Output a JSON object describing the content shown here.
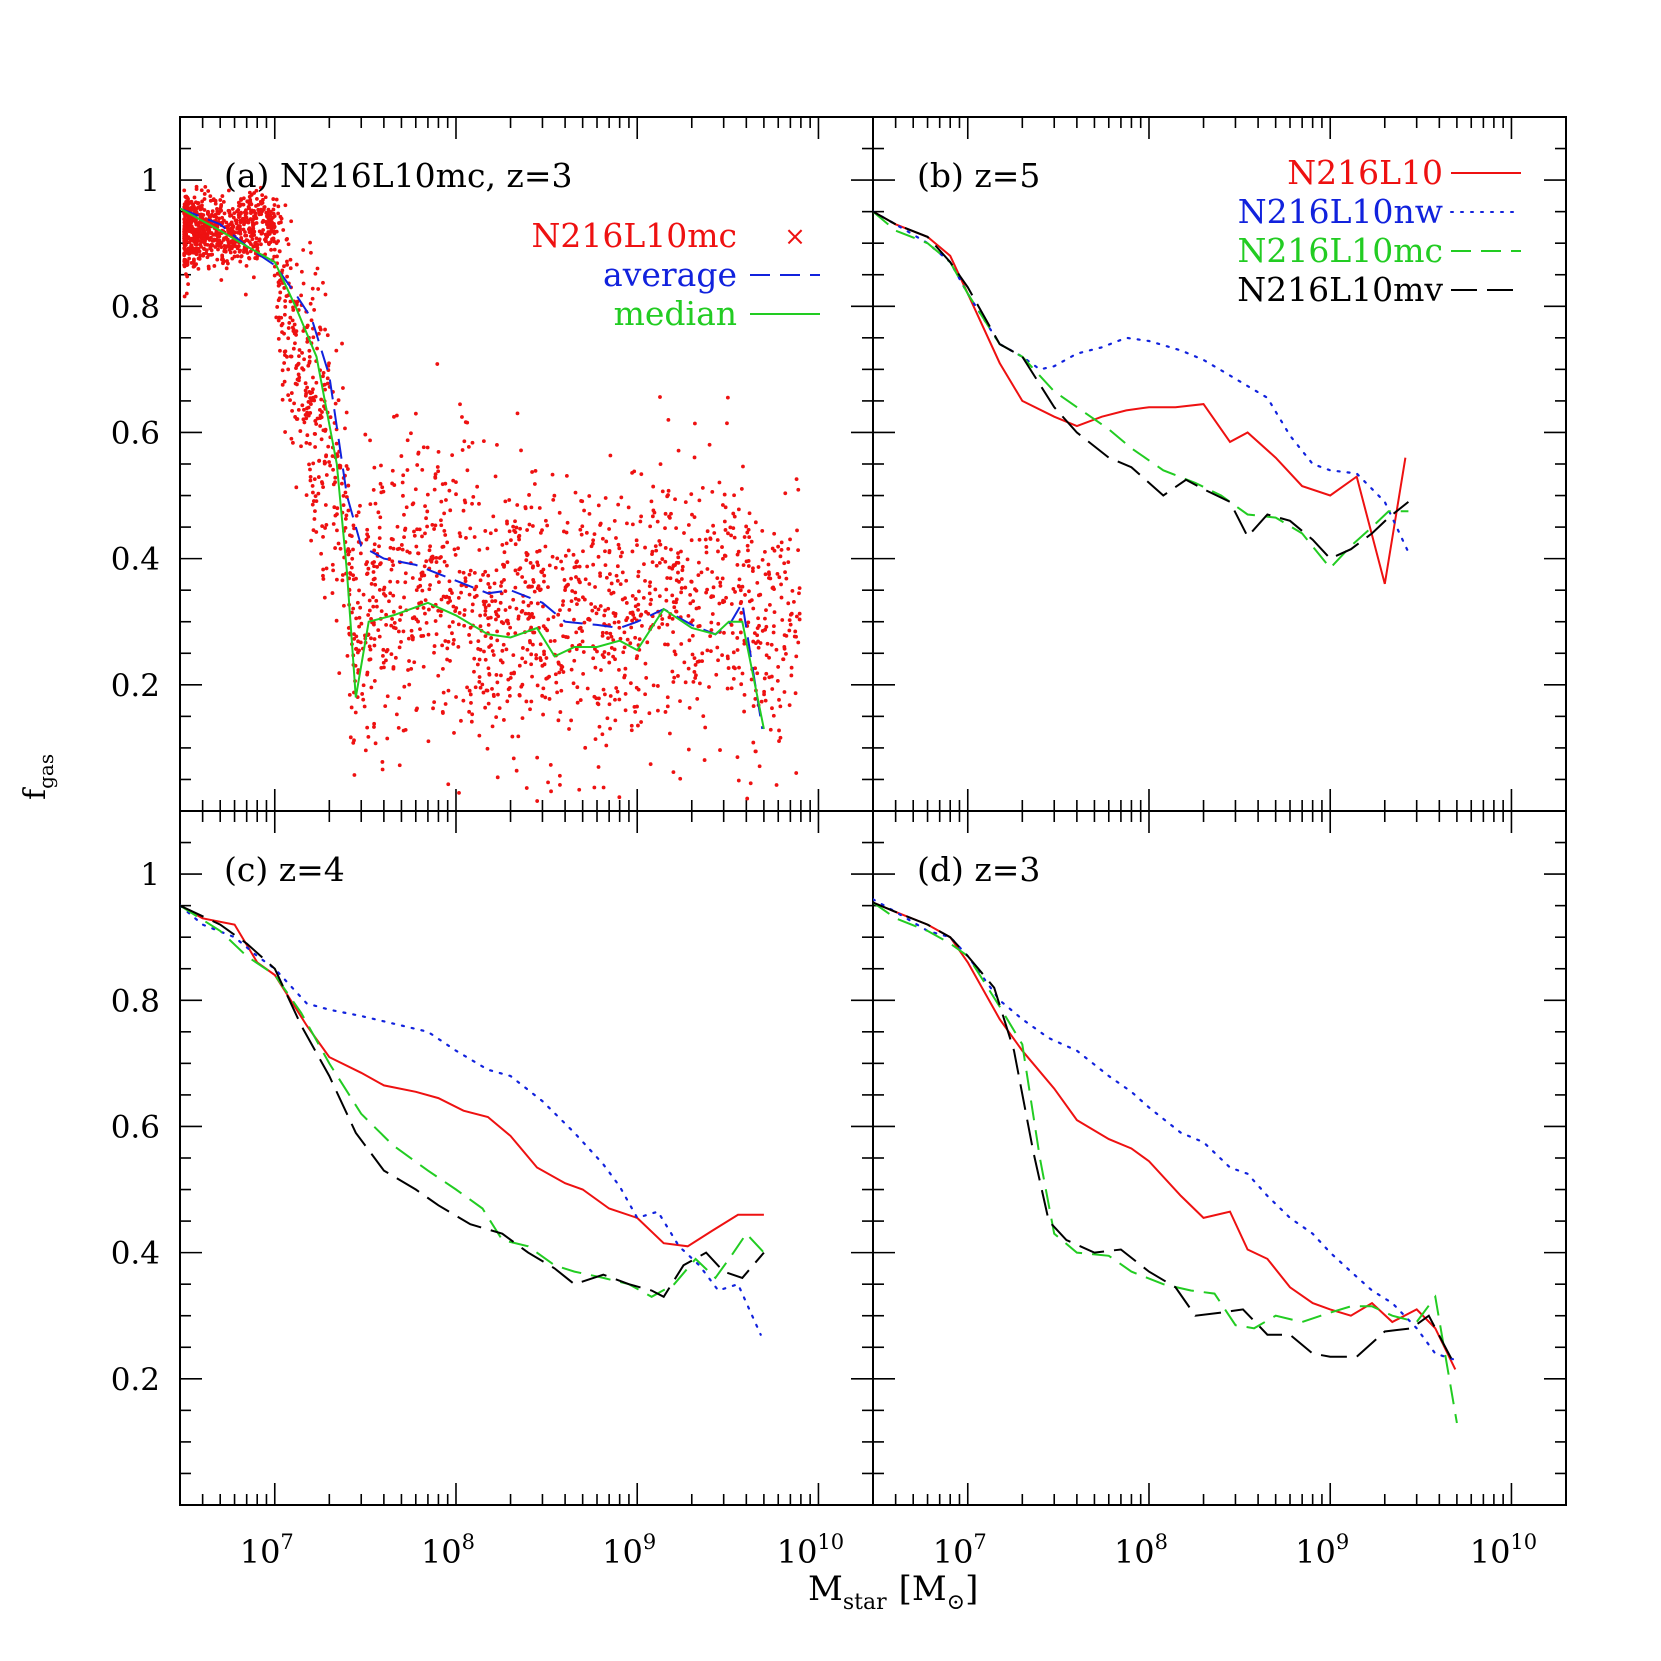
{
  "figure": {
    "ylabel_main": "f",
    "ylabel_sub": "gas",
    "xlabel_main": "M",
    "xlabel_sub": "star",
    "xlabel_unit_open": "[M",
    "xlabel_unit_close": "]",
    "xlabel_unit_symbol": "⊙"
  },
  "chart_data": [
    {
      "panel": "a",
      "type": "scatter",
      "title": "(a)  N216L10mc, z=3",
      "xscale": "log",
      "xlim": [
        3000000,
        20000000000
      ],
      "ylim": [
        0,
        1.1
      ],
      "yticks": [
        0.2,
        0.4,
        0.6,
        0.8,
        1
      ],
      "ytick_labels": [
        "0.2",
        "0.4",
        "0.6",
        "0.8",
        "1"
      ],
      "legend_placement": "top-right",
      "legend": [
        {
          "label": "N216L10mc",
          "color": "#ee1111",
          "marker": "×"
        },
        {
          "label": "average",
          "color": "#1122dd",
          "style": "dashed"
        },
        {
          "label": "median",
          "color": "#22cc22",
          "style": "solid"
        }
      ],
      "scatter_color": "#ee1111",
      "series": [
        {
          "name": "average",
          "color": "#1122dd",
          "style": "dashed",
          "x": [
            3000000,
            5000000,
            7000000,
            10000000,
            13000000,
            16000000,
            20000000,
            25000000,
            30000000,
            40000000,
            60000000,
            100000000,
            150000000,
            200000000,
            300000000,
            400000000,
            600000000,
            800000000,
            1000000000,
            1400000000,
            2000000000,
            2700000000,
            3300000000,
            3800000000,
            4900000000
          ],
          "y": [
            0.955,
            0.93,
            0.895,
            0.865,
            0.82,
            0.78,
            0.69,
            0.5,
            0.42,
            0.4,
            0.39,
            0.365,
            0.345,
            0.35,
            0.33,
            0.3,
            0.295,
            0.29,
            0.3,
            0.32,
            0.295,
            0.28,
            0.3,
            0.33,
            0.13
          ]
        },
        {
          "name": "median",
          "color": "#22cc22",
          "style": "solid",
          "x": [
            3000000,
            5000000,
            7000000,
            10000000,
            13000000,
            17000000,
            22000000,
            25000000,
            28000000,
            33000000,
            45000000,
            70000000,
            100000000,
            150000000,
            200000000,
            280000000,
            350000000,
            450000000,
            600000000,
            800000000,
            1000000000,
            1400000000,
            2000000000,
            2700000000,
            3200000000,
            3800000000,
            5000000000
          ],
          "y": [
            0.955,
            0.92,
            0.895,
            0.87,
            0.8,
            0.72,
            0.55,
            0.38,
            0.18,
            0.3,
            0.31,
            0.33,
            0.31,
            0.28,
            0.275,
            0.29,
            0.245,
            0.26,
            0.26,
            0.27,
            0.255,
            0.32,
            0.29,
            0.28,
            0.3,
            0.3,
            0.13
          ]
        }
      ]
    },
    {
      "panel": "b",
      "type": "line",
      "title": "(b)  z=5",
      "xscale": "log",
      "xlim": [
        3000000,
        20000000000
      ],
      "ylim": [
        0,
        1.1
      ],
      "legend_placement": "top-right",
      "legend": [
        {
          "label": "N216L10",
          "color": "#ee1111",
          "style": "solid"
        },
        {
          "label": "N216L10nw",
          "color": "#1122dd",
          "style": "dotted"
        },
        {
          "label": "N216L10mc",
          "color": "#22cc22",
          "style": "dashed"
        },
        {
          "label": "N216L10mv",
          "color": "#000000",
          "style": "longdash"
        }
      ],
      "series": [
        {
          "name": "N216L10",
          "color": "#ee1111",
          "style": "solid",
          "x": [
            3000000,
            4000000,
            6000000,
            8000000,
            10000000,
            15000000,
            20000000,
            30000000,
            40000000,
            55000000,
            75000000,
            100000000,
            140000000,
            200000000,
            280000000,
            350000000,
            500000000,
            700000000,
            1000000000,
            1400000000,
            2000000000,
            2600000000
          ],
          "y": [
            0.95,
            0.93,
            0.91,
            0.88,
            0.82,
            0.71,
            0.65,
            0.625,
            0.61,
            0.625,
            0.635,
            0.64,
            0.64,
            0.645,
            0.585,
            0.6,
            0.56,
            0.515,
            0.5,
            0.53,
            0.36,
            0.56
          ]
        },
        {
          "name": "N216L10nw",
          "color": "#1122dd",
          "style": "dotted",
          "x": [
            3000000,
            4000000,
            6000000,
            8000000,
            10000000,
            15000000,
            20000000,
            25000000,
            30000000,
            40000000,
            55000000,
            75000000,
            100000000,
            150000000,
            200000000,
            300000000,
            450000000,
            600000000,
            800000000,
            1000000000,
            1400000000,
            2000000000,
            2700000000
          ],
          "y": [
            0.95,
            0.93,
            0.9,
            0.87,
            0.82,
            0.74,
            0.72,
            0.7,
            0.705,
            0.725,
            0.735,
            0.75,
            0.745,
            0.73,
            0.715,
            0.685,
            0.655,
            0.595,
            0.55,
            0.54,
            0.535,
            0.49,
            0.41
          ]
        },
        {
          "name": "N216L10mc",
          "color": "#22cc22",
          "style": "dashed",
          "x": [
            3000000,
            4000000,
            6000000,
            8000000,
            10000000,
            15000000,
            20000000,
            30000000,
            40000000,
            60000000,
            80000000,
            120000000,
            180000000,
            250000000,
            350000000,
            500000000,
            700000000,
            1000000000,
            1300000000,
            1700000000,
            2100000000,
            2700000000
          ],
          "y": [
            0.95,
            0.92,
            0.9,
            0.87,
            0.82,
            0.74,
            0.72,
            0.665,
            0.64,
            0.605,
            0.575,
            0.54,
            0.52,
            0.5,
            0.47,
            0.465,
            0.44,
            0.385,
            0.42,
            0.45,
            0.475,
            0.475
          ]
        },
        {
          "name": "N216L10mv",
          "color": "#000000",
          "style": "longdash",
          "x": [
            3000000,
            4000000,
            6000000,
            8000000,
            10000000,
            15000000,
            20000000,
            30000000,
            40000000,
            60000000,
            80000000,
            120000000,
            160000000,
            200000000,
            280000000,
            350000000,
            450000000,
            600000000,
            800000000,
            1000000000,
            1300000000,
            1700000000,
            2100000000,
            2700000000
          ],
          "y": [
            0.95,
            0.93,
            0.91,
            0.87,
            0.83,
            0.74,
            0.72,
            0.64,
            0.6,
            0.56,
            0.545,
            0.5,
            0.525,
            0.51,
            0.49,
            0.435,
            0.47,
            0.46,
            0.43,
            0.4,
            0.415,
            0.44,
            0.465,
            0.49
          ]
        }
      ]
    },
    {
      "panel": "c",
      "type": "line",
      "title": "(c)  z=4",
      "xscale": "log",
      "xlim": [
        3000000,
        20000000000
      ],
      "ylim": [
        0,
        1.1
      ],
      "xticks": [
        10000000,
        100000000,
        1000000000,
        10000000000
      ],
      "xtick_base": "10",
      "xtick_exponents": [
        "7",
        "8",
        "9",
        "10"
      ],
      "yticks": [
        0.2,
        0.4,
        0.6,
        0.8,
        1
      ],
      "ytick_labels": [
        "0.2",
        "0.4",
        "0.6",
        "0.8",
        "1"
      ],
      "series": [
        {
          "name": "N216L10",
          "color": "#ee1111",
          "style": "solid",
          "x": [
            3000000,
            4000000,
            6000000,
            8000000,
            10000000,
            15000000,
            20000000,
            30000000,
            40000000,
            60000000,
            80000000,
            110000000,
            150000000,
            200000000,
            280000000,
            400000000,
            500000000,
            700000000,
            1000000000,
            1400000000,
            1900000000,
            2600000000,
            3600000000,
            5000000000
          ],
          "y": [
            0.95,
            0.93,
            0.92,
            0.86,
            0.84,
            0.76,
            0.71,
            0.685,
            0.665,
            0.655,
            0.645,
            0.625,
            0.615,
            0.585,
            0.535,
            0.51,
            0.5,
            0.47,
            0.455,
            0.415,
            0.41,
            0.435,
            0.46,
            0.46
          ]
        },
        {
          "name": "N216L10nw",
          "color": "#1122dd",
          "style": "dotted",
          "x": [
            3000000,
            4000000,
            6000000,
            8000000,
            10000000,
            15000000,
            20000000,
            30000000,
            50000000,
            70000000,
            100000000,
            150000000,
            200000000,
            300000000,
            450000000,
            650000000,
            800000000,
            1000000000,
            1300000000,
            1700000000,
            2200000000,
            2800000000,
            3600000000,
            4800000000
          ],
          "y": [
            0.95,
            0.92,
            0.9,
            0.87,
            0.85,
            0.795,
            0.785,
            0.775,
            0.76,
            0.75,
            0.72,
            0.69,
            0.68,
            0.64,
            0.59,
            0.54,
            0.505,
            0.455,
            0.465,
            0.41,
            0.38,
            0.34,
            0.35,
            0.27
          ]
        },
        {
          "name": "N216L10mc",
          "color": "#22cc22",
          "style": "dashed",
          "x": [
            3000000,
            5000000,
            7000000,
            10000000,
            14000000,
            20000000,
            30000000,
            45000000,
            70000000,
            100000000,
            140000000,
            180000000,
            250000000,
            350000000,
            450000000,
            650000000,
            900000000,
            1200000000,
            1600000000,
            2100000000,
            2700000000,
            3400000000,
            4000000000,
            5000000000
          ],
          "y": [
            0.95,
            0.91,
            0.87,
            0.84,
            0.78,
            0.7,
            0.62,
            0.57,
            0.53,
            0.5,
            0.47,
            0.42,
            0.41,
            0.38,
            0.37,
            0.36,
            0.35,
            0.33,
            0.35,
            0.39,
            0.36,
            0.4,
            0.43,
            0.4
          ]
        },
        {
          "name": "N216L10mv",
          "color": "#000000",
          "style": "longdash",
          "x": [
            3000000,
            5000000,
            7000000,
            10000000,
            14000000,
            20000000,
            28000000,
            40000000,
            60000000,
            80000000,
            120000000,
            180000000,
            250000000,
            350000000,
            450000000,
            650000000,
            900000000,
            1200000000,
            1400000000,
            1800000000,
            2400000000,
            3000000000,
            3800000000,
            5000000000
          ],
          "y": [
            0.95,
            0.92,
            0.89,
            0.85,
            0.76,
            0.68,
            0.59,
            0.53,
            0.5,
            0.475,
            0.445,
            0.43,
            0.4,
            0.375,
            0.35,
            0.365,
            0.35,
            0.34,
            0.33,
            0.38,
            0.4,
            0.37,
            0.36,
            0.4
          ]
        }
      ]
    },
    {
      "panel": "d",
      "type": "line",
      "title": "(d)  z=3",
      "xscale": "log",
      "xlim": [
        3000000,
        20000000000
      ],
      "ylim": [
        0,
        1.1
      ],
      "xticks": [
        10000000,
        100000000,
        1000000000,
        10000000000
      ],
      "xtick_base": "10",
      "xtick_exponents": [
        "7",
        "8",
        "9",
        "10"
      ],
      "series": [
        {
          "name": "N216L10",
          "color": "#ee1111",
          "style": "solid",
          "x": [
            3000000,
            4000000,
            6000000,
            8000000,
            10000000,
            15000000,
            20000000,
            30000000,
            40000000,
            60000000,
            80000000,
            100000000,
            150000000,
            200000000,
            280000000,
            350000000,
            450000000,
            600000000,
            800000000,
            1000000000,
            1300000000,
            1700000000,
            2200000000,
            3000000000,
            3800000000,
            4900000000
          ],
          "y": [
            0.955,
            0.94,
            0.92,
            0.9,
            0.86,
            0.77,
            0.72,
            0.66,
            0.61,
            0.58,
            0.565,
            0.545,
            0.49,
            0.455,
            0.465,
            0.405,
            0.39,
            0.345,
            0.32,
            0.31,
            0.3,
            0.32,
            0.29,
            0.31,
            0.28,
            0.215
          ]
        },
        {
          "name": "N216L10nw",
          "color": "#1122dd",
          "style": "dotted",
          "x": [
            3000000,
            4000000,
            6000000,
            8000000,
            10000000,
            15000000,
            20000000,
            28000000,
            40000000,
            60000000,
            80000000,
            100000000,
            150000000,
            200000000,
            280000000,
            350000000,
            450000000,
            600000000,
            800000000,
            1000000000,
            1300000000,
            1700000000,
            2200000000,
            3000000000,
            3800000000,
            4900000000
          ],
          "y": [
            0.96,
            0.94,
            0.91,
            0.9,
            0.87,
            0.8,
            0.77,
            0.74,
            0.72,
            0.68,
            0.655,
            0.63,
            0.59,
            0.575,
            0.535,
            0.525,
            0.49,
            0.455,
            0.43,
            0.4,
            0.37,
            0.34,
            0.32,
            0.28,
            0.24,
            0.23
          ]
        },
        {
          "name": "N216L10mc",
          "color": "#22cc22",
          "style": "dashed",
          "x": [
            3000000,
            4000000,
            6000000,
            8000000,
            10000000,
            15000000,
            20000000,
            25000000,
            30000000,
            40000000,
            60000000,
            80000000,
            120000000,
            170000000,
            230000000,
            300000000,
            380000000,
            500000000,
            700000000,
            1000000000,
            1300000000,
            1700000000,
            2200000000,
            3000000000,
            3800000000,
            5000000000
          ],
          "y": [
            0.955,
            0.93,
            0.91,
            0.89,
            0.87,
            0.79,
            0.73,
            0.55,
            0.43,
            0.4,
            0.395,
            0.37,
            0.35,
            0.34,
            0.335,
            0.285,
            0.28,
            0.3,
            0.29,
            0.305,
            0.315,
            0.315,
            0.3,
            0.29,
            0.33,
            0.13
          ]
        },
        {
          "name": "N216L10mv",
          "color": "#000000",
          "style": "longdash",
          "x": [
            3000000,
            4000000,
            6000000,
            8000000,
            10000000,
            14000000,
            18000000,
            23000000,
            28000000,
            35000000,
            50000000,
            70000000,
            100000000,
            140000000,
            180000000,
            250000000,
            330000000,
            450000000,
            600000000,
            800000000,
            1000000000,
            1400000000,
            2000000000,
            2800000000,
            3500000000,
            4900000000
          ],
          "y": [
            0.955,
            0.94,
            0.92,
            0.9,
            0.87,
            0.82,
            0.72,
            0.56,
            0.45,
            0.42,
            0.4,
            0.405,
            0.37,
            0.345,
            0.3,
            0.305,
            0.31,
            0.27,
            0.27,
            0.24,
            0.235,
            0.235,
            0.275,
            0.28,
            0.3,
            0.22
          ]
        }
      ]
    }
  ]
}
